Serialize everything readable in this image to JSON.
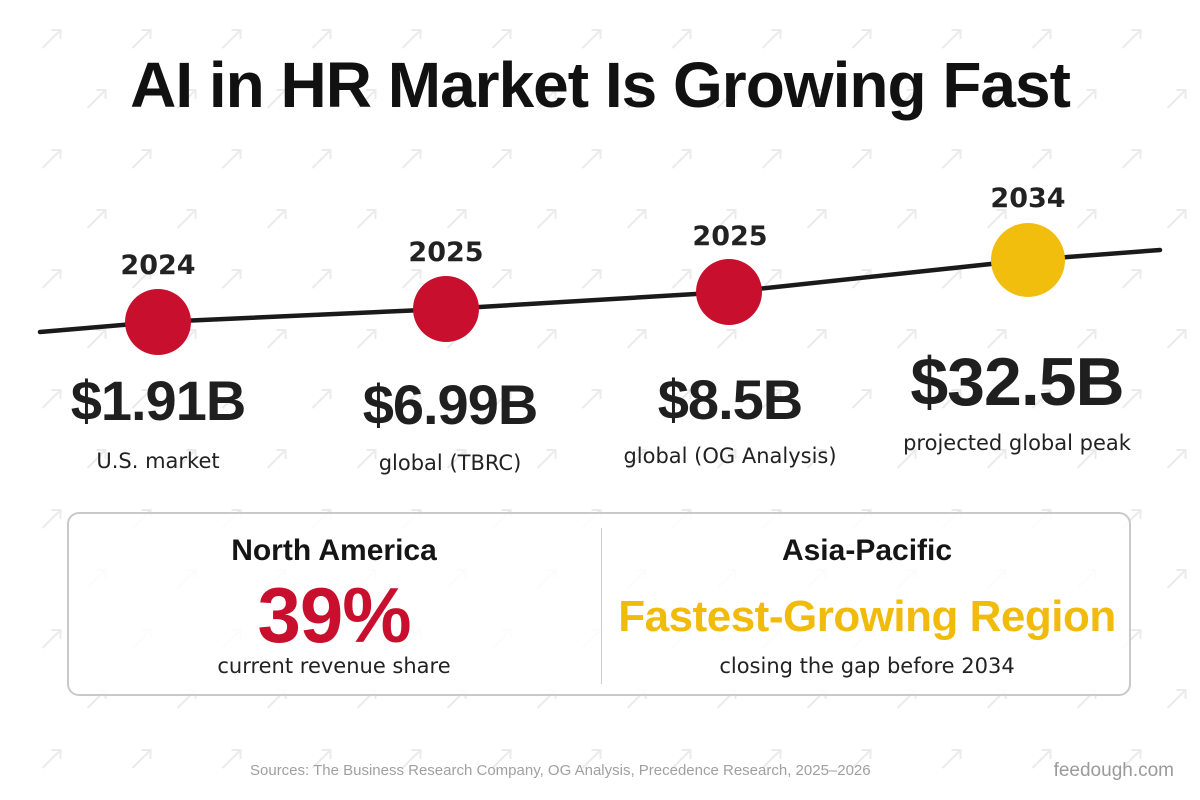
{
  "title": "AI in HR Market Is Growing Fast",
  "colors": {
    "accent_red": "#C8102E",
    "accent_yellow": "#F2BE0E",
    "line": "#1A1A1A",
    "text": "#1F1F1F"
  },
  "icons": [
    "trend-arrow-icon"
  ],
  "milestones": [
    {
      "year": "2024",
      "value": "$1.91B",
      "description": "U.S. market",
      "marker_color": "red"
    },
    {
      "year": "2025",
      "value": "$6.99B",
      "description": "global (TBRC)",
      "marker_color": "red"
    },
    {
      "year": "2025",
      "value": "$8.5B",
      "description": "global (OG Analysis)",
      "marker_color": "red"
    },
    {
      "year": "2034",
      "value": "$32.5B",
      "description": "projected global peak",
      "marker_color": "yellow"
    }
  ],
  "regions": {
    "left": {
      "name": "North America",
      "stat": "39%",
      "note": "current revenue share"
    },
    "right": {
      "name": "Asia-Pacific",
      "stat": "Fastest-Growing Region",
      "note": "closing the gap before 2034"
    }
  },
  "footer": {
    "sources": "Sources: The Business Research Company, OG Analysis, Precedence Research, 2025–2026",
    "brand": "feedough.com"
  }
}
